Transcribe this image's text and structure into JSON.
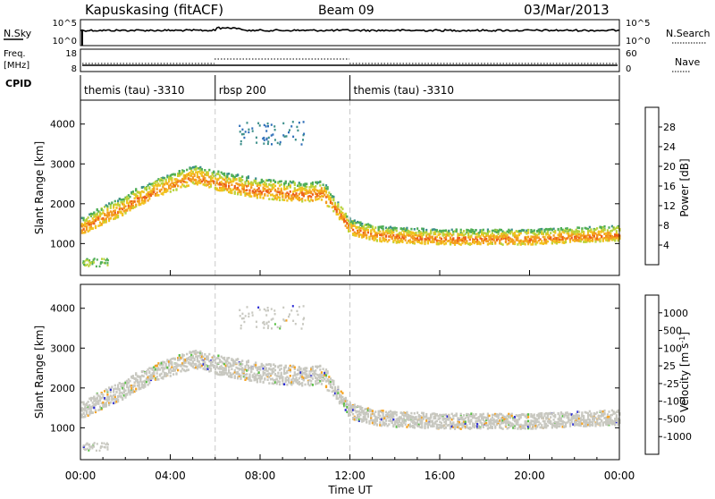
{
  "header": {
    "station": "Kapuskasing (fitACF)",
    "beam": "Beam 09",
    "date": "03/Mar/2013"
  },
  "noise_panel": {
    "left_label": "N.Sky",
    "left_ticks": [
      "10^5",
      "10^0"
    ],
    "right_ticks": [
      "10^5",
      "10^0"
    ],
    "right_label": "N.Search"
  },
  "freq_panel": {
    "left_label_1": "Freq.",
    "left_label_2": "[MHz]",
    "left_ticks": [
      "18",
      "8"
    ],
    "right_ticks": [
      "60",
      "0"
    ],
    "right_label": "Nave"
  },
  "cpid_panel": {
    "label": "CPID",
    "segments": [
      {
        "start_hour": 0,
        "end_hour": 6,
        "name": "themis (tau) -3310"
      },
      {
        "start_hour": 6,
        "end_hour": 12,
        "name": "rbsp 200"
      },
      {
        "start_hour": 12,
        "end_hour": 24,
        "name": "themis (tau) -3310"
      }
    ]
  },
  "chart_data": [
    {
      "type": "heatmap",
      "title": "",
      "xlabel": "",
      "ylabel": "Slant Range [km]",
      "xlim": [
        0,
        24
      ],
      "ylim": [
        200,
        4600
      ],
      "y_ticks": [
        1000,
        2000,
        3000,
        4000
      ],
      "y_tick_labels": [
        "1000",
        "2000",
        "3000",
        "4000"
      ],
      "colorbar": {
        "label": "Power [dB]",
        "range": [
          0,
          32
        ],
        "tick_labels": [
          "28",
          "24",
          "20",
          "16",
          "12",
          "8",
          "4"
        ],
        "colors": [
          "#2b2bd6",
          "#2f6fb8",
          "#3d8f8a",
          "#4fae56",
          "#b9d33b",
          "#f2c21f",
          "#f39a1e",
          "#ec5d1a",
          "#e52222"
        ]
      },
      "echo_band_center_km": [
        [
          0.0,
          1350
        ],
        [
          0.5,
          1500
        ],
        [
          1.0,
          1650
        ],
        [
          1.5,
          1780
        ],
        [
          2.0,
          1900
        ],
        [
          2.5,
          2100
        ],
        [
          3.0,
          2200
        ],
        [
          3.5,
          2350
        ],
        [
          4.0,
          2450
        ],
        [
          4.5,
          2550
        ],
        [
          5.0,
          2650
        ],
        [
          5.5,
          2600
        ],
        [
          6.0,
          2500
        ],
        [
          7.0,
          2400
        ],
        [
          8.0,
          2300
        ],
        [
          9.0,
          2250
        ],
        [
          10.0,
          2200
        ],
        [
          10.7,
          2250
        ],
        [
          11.2,
          1950
        ],
        [
          11.7,
          1600
        ],
        [
          12.0,
          1350
        ],
        [
          13.0,
          1200
        ],
        [
          14.0,
          1150
        ],
        [
          16.0,
          1100
        ],
        [
          18.0,
          1100
        ],
        [
          20.0,
          1100
        ],
        [
          22.0,
          1150
        ],
        [
          24.0,
          1200
        ]
      ]
    },
    {
      "type": "heatmap",
      "title": "",
      "xlabel": "Time UT",
      "ylabel": "Slant Range [km]",
      "xlim": [
        0,
        24
      ],
      "ylim": [
        200,
        4600
      ],
      "x_ticks": [
        0,
        4,
        8,
        12,
        16,
        20,
        24
      ],
      "x_tick_labels": [
        "00:00",
        "04:00",
        "08:00",
        "12:00",
        "16:00",
        "20:00",
        "00:00"
      ],
      "y_ticks": [
        1000,
        2000,
        3000,
        4000
      ],
      "y_tick_labels": [
        "1000",
        "2000",
        "3000",
        "4000"
      ],
      "colorbar": {
        "label": "Velocity [m s^-1]",
        "tick_labels": [
          "1000",
          "500",
          "100",
          "25",
          "-25",
          "-100",
          "-500",
          "-1000"
        ],
        "colors": [
          "#2a2ad4",
          "#3a7fc1",
          "#3f9c6b",
          "#58c043",
          "#c8c8c0",
          "#f5a21f",
          "#ef7c19",
          "#e84a1a",
          "#e42222"
        ]
      },
      "dominant_velocity_color": "#c8c8c0"
    }
  ]
}
